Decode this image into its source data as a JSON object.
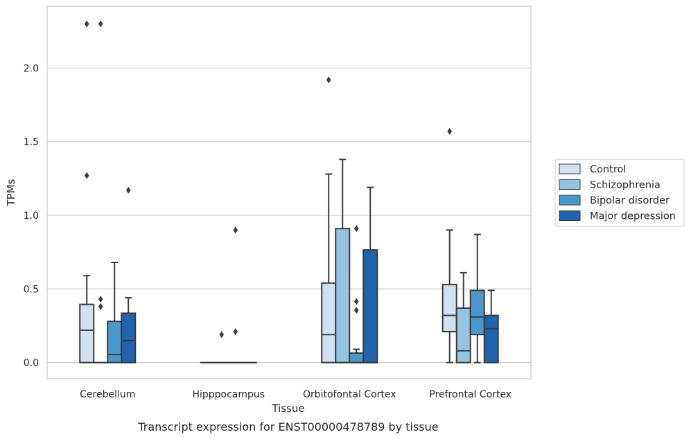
{
  "caption": "Transcript expression for ENST00000478789 by tissue",
  "chart_data": {
    "type": "box",
    "xlabel": "Tissue",
    "ylabel": "TPMs",
    "ylim": [
      -0.11,
      2.42
    ],
    "yticks": [
      0.0,
      0.5,
      1.0,
      1.5,
      2.0
    ],
    "ytick_labels": [
      "0.0",
      "0.5",
      "1.0",
      "1.5",
      "2.0"
    ],
    "grid": "horizontal",
    "legend_position": "right",
    "categories": [
      "Cerebellum",
      "Hipppocampus",
      "Orbitofontal Cortex",
      "Prefrontal Cortex"
    ],
    "series": [
      {
        "name": "Control",
        "color": "#d0e1f2",
        "boxes": [
          {
            "q1": 0.0,
            "median": 0.22,
            "q3": 0.395,
            "whislo": 0.0,
            "whishi": 0.59,
            "fliers": [
              1.27,
              2.3
            ]
          },
          {
            "q1": 0.0,
            "median": 0.0,
            "q3": 0.0,
            "whislo": 0.0,
            "whishi": 0.0,
            "fliers": []
          },
          {
            "q1": 0.0,
            "median": 0.19,
            "q3": 0.54,
            "whislo": 0.0,
            "whishi": 1.28,
            "fliers": [
              1.92
            ]
          },
          {
            "q1": 0.21,
            "median": 0.32,
            "q3": 0.53,
            "whislo": 0.0,
            "whishi": 0.9,
            "fliers": [
              1.57
            ]
          }
        ]
      },
      {
        "name": "Schizophrenia",
        "color": "#94c4df",
        "boxes": [
          {
            "q1": 0.0,
            "median": 0.0,
            "q3": 0.0,
            "whislo": 0.0,
            "whishi": 0.0,
            "fliers": [
              0.38,
              0.43,
              2.3
            ]
          },
          {
            "q1": 0.0,
            "median": 0.0,
            "q3": 0.0,
            "whislo": 0.0,
            "whishi": 0.0,
            "fliers": [
              0.19
            ]
          },
          {
            "q1": 0.0,
            "median": 0.0,
            "q3": 0.91,
            "whislo": 0.0,
            "whishi": 1.38,
            "fliers": []
          },
          {
            "q1": 0.0,
            "median": 0.08,
            "q3": 0.37,
            "whislo": 0.0,
            "whishi": 0.61,
            "fliers": []
          }
        ]
      },
      {
        "name": "Bipolar disorder",
        "color": "#4a98c9",
        "boxes": [
          {
            "q1": 0.0,
            "median": 0.055,
            "q3": 0.28,
            "whislo": 0.0,
            "whishi": 0.68,
            "fliers": []
          },
          {
            "q1": 0.0,
            "median": 0.0,
            "q3": 0.0,
            "whislo": 0.0,
            "whishi": 0.0,
            "fliers": [
              0.21,
              0.9
            ]
          },
          {
            "q1": 0.0,
            "median": 0.0,
            "q3": 0.065,
            "whislo": 0.0,
            "whishi": 0.09,
            "fliers": [
              0.355,
              0.415,
              0.91
            ]
          },
          {
            "q1": 0.19,
            "median": 0.31,
            "q3": 0.49,
            "whislo": 0.0,
            "whishi": 0.87,
            "fliers": []
          }
        ]
      },
      {
        "name": "Major depression",
        "color": "#2163aa",
        "boxes": [
          {
            "q1": 0.0,
            "median": 0.15,
            "q3": 0.335,
            "whislo": 0.0,
            "whishi": 0.44,
            "fliers": [
              1.17
            ]
          },
          {
            "q1": 0.0,
            "median": 0.0,
            "q3": 0.0,
            "whislo": 0.0,
            "whishi": 0.0,
            "fliers": []
          },
          {
            "q1": 0.0,
            "median": 0.0,
            "q3": 0.765,
            "whislo": 0.0,
            "whishi": 1.19,
            "fliers": []
          },
          {
            "q1": 0.0,
            "median": 0.23,
            "q3": 0.32,
            "whislo": 0.0,
            "whishi": 0.49,
            "fliers": []
          }
        ]
      }
    ]
  }
}
